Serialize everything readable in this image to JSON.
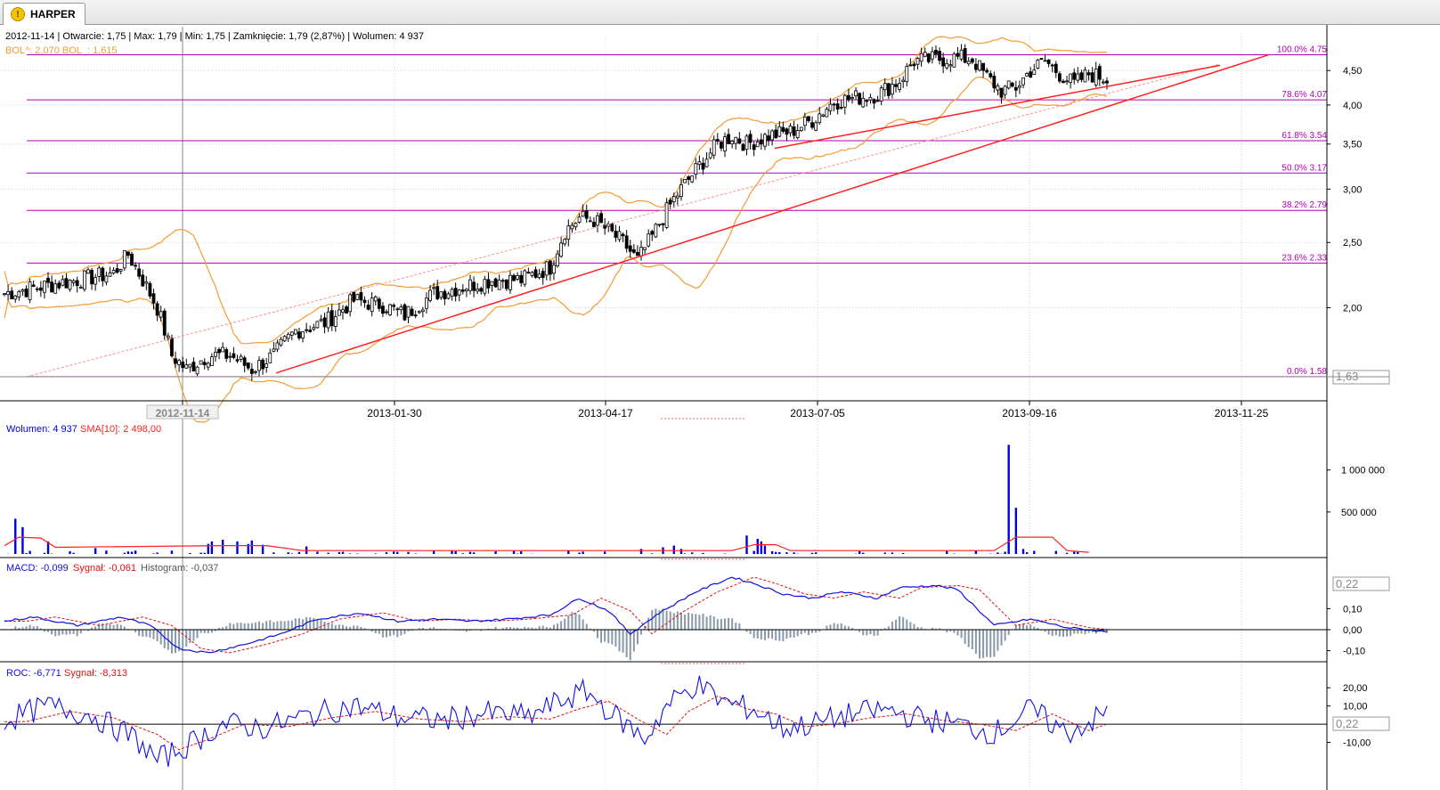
{
  "tab": {
    "label": "HARPER",
    "icon": "warning-icon"
  },
  "info": "2012-11-14 | Otwarcie: 1,75 | Max: 1,79 | Min: 1,75 | Zamknięcie: 1,79 (2,87%) | Wolumen: 4 937",
  "bol_legend": "BOL^: 2,070  BOL_: 1,615",
  "colors": {
    "candle": "#000000",
    "bollinger": "#f39c34",
    "fib": "#b000b0",
    "trend": "#ff2020",
    "macd": "#1010e0",
    "signal": "#e01010",
    "histogram": "#8899aa",
    "volume": "#0000dd",
    "sma": "#ff2020"
  },
  "chart_data": [
    {
      "type": "candlestick",
      "title": "HARPER",
      "x_ticks": [
        "2012-11-14",
        "2013-01-30",
        "2013-04-17",
        "2013-07-05",
        "2013-09-16",
        "2013-11-25"
      ],
      "y_ticks": [
        "2,00",
        "2,50",
        "3,00",
        "3,50",
        "4,00",
        "4,50"
      ],
      "ylim": [
        1.5,
        4.8
      ],
      "log_scale": true,
      "last_price_label": "1,63",
      "fibonacci": [
        {
          "label": "100.0% 4.75",
          "value": 4.75
        },
        {
          "label": "78.6% 4.07",
          "value": 4.07
        },
        {
          "label": "61.8% 3.54",
          "value": 3.54
        },
        {
          "label": "50.0% 3.17",
          "value": 3.17
        },
        {
          "label": "38.2% 2.79",
          "value": 2.79
        },
        {
          "label": "23.6% 2.33",
          "value": 2.33
        },
        {
          "label": "0.0% 1.58",
          "value": 1.58
        }
      ],
      "price_anchors": [
        [
          0,
          2.1
        ],
        [
          10,
          2.15
        ],
        [
          20,
          2.2
        ],
        [
          30,
          2.25
        ],
        [
          34,
          2.4
        ],
        [
          38,
          2.2
        ],
        [
          42,
          2.0
        ],
        [
          46,
          1.7
        ],
        [
          50,
          1.62
        ],
        [
          56,
          1.7
        ],
        [
          62,
          1.7
        ],
        [
          68,
          1.62
        ],
        [
          74,
          1.7
        ],
        [
          80,
          1.85
        ],
        [
          88,
          1.9
        ],
        [
          96,
          2.05
        ],
        [
          104,
          2.02
        ],
        [
          110,
          1.95
        ],
        [
          118,
          2.1
        ],
        [
          126,
          2.15
        ],
        [
          134,
          2.2
        ],
        [
          142,
          2.2
        ],
        [
          150,
          2.3
        ],
        [
          154,
          2.6
        ],
        [
          158,
          2.72
        ],
        [
          162,
          2.7
        ],
        [
          166,
          2.6
        ],
        [
          170,
          2.5
        ],
        [
          174,
          2.35
        ],
        [
          178,
          2.55
        ],
        [
          184,
          2.9
        ],
        [
          188,
          3.1
        ],
        [
          192,
          3.3
        ],
        [
          196,
          3.5
        ],
        [
          200,
          3.6
        ],
        [
          204,
          3.5
        ],
        [
          210,
          3.6
        ],
        [
          216,
          3.65
        ],
        [
          222,
          3.8
        ],
        [
          228,
          4.05
        ],
        [
          234,
          4.1
        ],
        [
          240,
          4.15
        ],
        [
          246,
          4.35
        ],
        [
          250,
          4.65
        ],
        [
          256,
          4.68
        ],
        [
          262,
          4.7
        ],
        [
          266,
          4.68
        ],
        [
          270,
          4.4
        ],
        [
          274,
          4.2
        ],
        [
          278,
          4.25
        ],
        [
          282,
          4.5
        ],
        [
          286,
          4.65
        ],
        [
          290,
          4.45
        ],
        [
          294,
          4.3
        ],
        [
          298,
          4.45
        ],
        [
          303,
          4.38
        ]
      ],
      "price_noise_seed": 7
    },
    {
      "type": "bar",
      "title": "Wolumen",
      "legend": [
        "Wolumen: 4 937",
        "SMA[10]: 2 498,00"
      ],
      "y_ticks": [
        "500 000",
        "1 000 000"
      ],
      "ylim": [
        0,
        1400000
      ],
      "values_sparse": [
        [
          3,
          420000
        ],
        [
          5,
          320000
        ],
        [
          12,
          150000
        ],
        [
          25,
          70000
        ],
        [
          34,
          30000
        ],
        [
          36,
          40000
        ],
        [
          56,
          120000
        ],
        [
          57,
          150000
        ],
        [
          60,
          170000
        ],
        [
          64,
          150000
        ],
        [
          67,
          120000
        ],
        [
          68,
          160000
        ],
        [
          71,
          110000
        ],
        [
          83,
          90000
        ],
        [
          118,
          40000
        ],
        [
          140,
          40000
        ],
        [
          175,
          60000
        ],
        [
          181,
          80000
        ],
        [
          184,
          100000
        ],
        [
          186,
          60000
        ],
        [
          204,
          220000
        ],
        [
          207,
          180000
        ],
        [
          208,
          150000
        ],
        [
          209,
          100000
        ],
        [
          276,
          1300000
        ],
        [
          278,
          550000
        ],
        [
          280,
          60000
        ]
      ],
      "sma_sparse": [
        [
          0,
          100000
        ],
        [
          4,
          200000
        ],
        [
          10,
          190000
        ],
        [
          14,
          80000
        ],
        [
          60,
          100000
        ],
        [
          72,
          100000
        ],
        [
          82,
          40000
        ],
        [
          200,
          40000
        ],
        [
          206,
          110000
        ],
        [
          212,
          110000
        ],
        [
          216,
          40000
        ],
        [
          272,
          40000
        ],
        [
          278,
          200000
        ],
        [
          288,
          200000
        ],
        [
          292,
          40000
        ],
        [
          298,
          20000
        ]
      ]
    },
    {
      "type": "line",
      "title": "MACD",
      "legend": [
        "MACD: -0,099",
        "Sygnał: -0,061",
        "Histogram: -0,037"
      ],
      "y_ticks": [
        "-0,10",
        "0,00",
        "0,10"
      ],
      "ylim": [
        -0.14,
        0.25
      ],
      "last_value_label": "0,22",
      "macd_anchors": [
        [
          0,
          0.04
        ],
        [
          8,
          0.06
        ],
        [
          20,
          0.02
        ],
        [
          32,
          0.06
        ],
        [
          40,
          0.02
        ],
        [
          48,
          -0.09
        ],
        [
          56,
          -0.11
        ],
        [
          66,
          -0.07
        ],
        [
          76,
          -0.02
        ],
        [
          86,
          0.05
        ],
        [
          98,
          0.08
        ],
        [
          108,
          0.04
        ],
        [
          118,
          0.05
        ],
        [
          128,
          0.04
        ],
        [
          138,
          0.05
        ],
        [
          150,
          0.07
        ],
        [
          158,
          0.15
        ],
        [
          166,
          0.09
        ],
        [
          172,
          -0.02
        ],
        [
          180,
          0.08
        ],
        [
          190,
          0.18
        ],
        [
          200,
          0.25
        ],
        [
          206,
          0.22
        ],
        [
          214,
          0.17
        ],
        [
          222,
          0.15
        ],
        [
          230,
          0.18
        ],
        [
          240,
          0.15
        ],
        [
          246,
          0.2
        ],
        [
          256,
          0.21
        ],
        [
          262,
          0.19
        ],
        [
          272,
          0.02
        ],
        [
          282,
          0.05
        ],
        [
          292,
          0.01
        ],
        [
          303,
          -0.01
        ]
      ],
      "signal_lag": 6
    },
    {
      "type": "line",
      "title": "ROC",
      "legend": [
        "ROC: -6,771",
        "Sygnał: -8,313"
      ],
      "y_ticks": [
        "-10,00",
        "10,00",
        "20,00"
      ],
      "ylim": [
        -22,
        25
      ],
      "last_value_label": "0,22",
      "roc_anchors": [
        [
          0,
          2
        ],
        [
          12,
          10
        ],
        [
          24,
          5
        ],
        [
          36,
          -8
        ],
        [
          42,
          -20
        ],
        [
          50,
          -12
        ],
        [
          60,
          0
        ],
        [
          72,
          -2
        ],
        [
          84,
          5
        ],
        [
          96,
          10
        ],
        [
          108,
          4
        ],
        [
          120,
          2
        ],
        [
          132,
          6
        ],
        [
          144,
          4
        ],
        [
          152,
          12
        ],
        [
          160,
          18
        ],
        [
          168,
          4
        ],
        [
          176,
          -8
        ],
        [
          182,
          10
        ],
        [
          190,
          22
        ],
        [
          198,
          12
        ],
        [
          206,
          8
        ],
        [
          214,
          -2
        ],
        [
          222,
          0
        ],
        [
          232,
          5
        ],
        [
          242,
          8
        ],
        [
          252,
          3
        ],
        [
          262,
          0
        ],
        [
          272,
          -5
        ],
        [
          282,
          8
        ],
        [
          292,
          -5
        ],
        [
          303,
          6
        ]
      ],
      "signal_lag": 6
    }
  ]
}
